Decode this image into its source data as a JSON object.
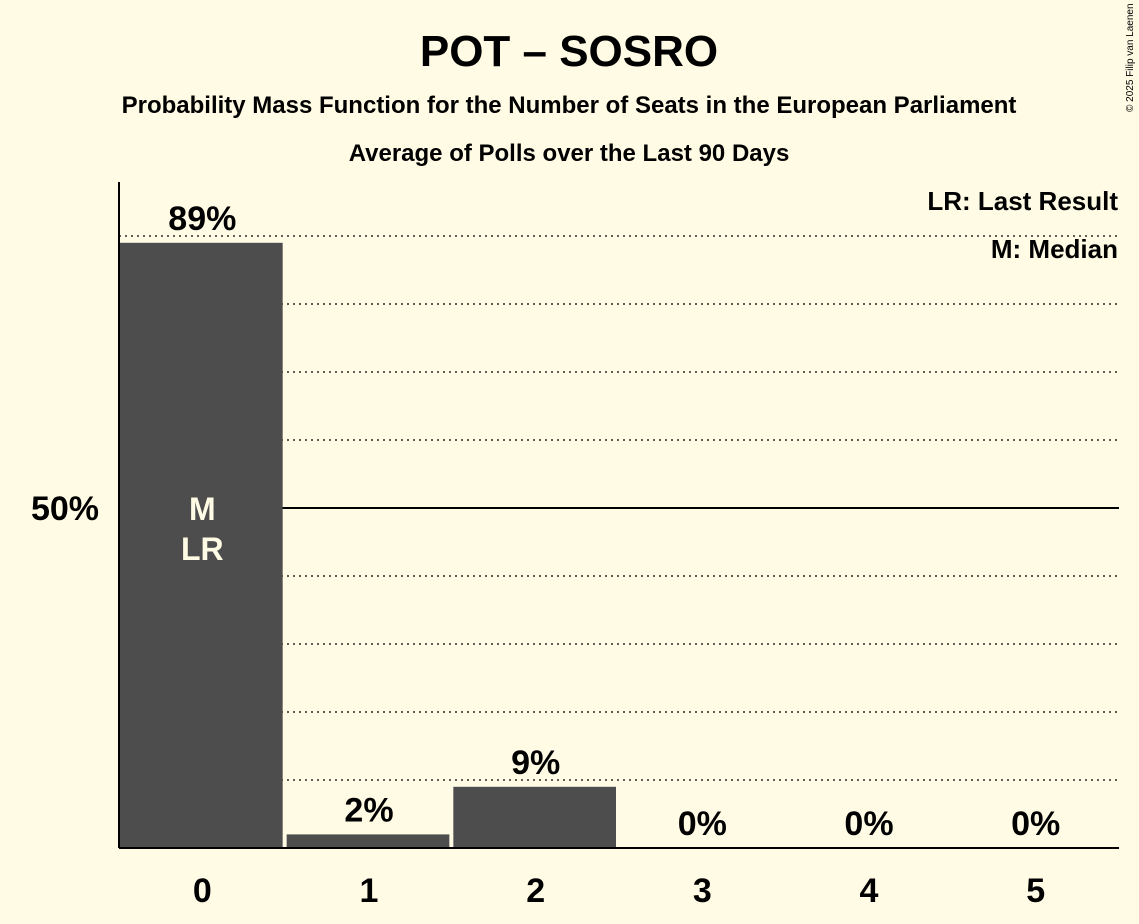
{
  "chart_data": {
    "type": "bar",
    "title": "POT – SOSRO",
    "subtitle": "Probability Mass Function for the Number of Seats in the European Parliament",
    "subtitle2": "Average of Polls over the Last 90 Days",
    "categories": [
      "0",
      "1",
      "2",
      "3",
      "4",
      "5"
    ],
    "values": [
      89,
      2,
      9,
      0,
      0,
      0
    ],
    "value_labels": [
      "89%",
      "2%",
      "9%",
      "0%",
      "0%",
      "0%"
    ],
    "ylim": [
      0,
      100
    ],
    "ytick_label": "50%",
    "ytick_value": 50,
    "gridlines": [
      10,
      20,
      30,
      40,
      60,
      70,
      80,
      90
    ],
    "median_index": 0,
    "last_result_index": 0,
    "median_marker": "M",
    "last_result_marker": "LR",
    "legend": [
      "LR: Last Result",
      "M: Median"
    ],
    "copyright": "© 2025 Filip van Laenen",
    "bar_color": "#4d4d4d",
    "background": "#fffbe5"
  }
}
